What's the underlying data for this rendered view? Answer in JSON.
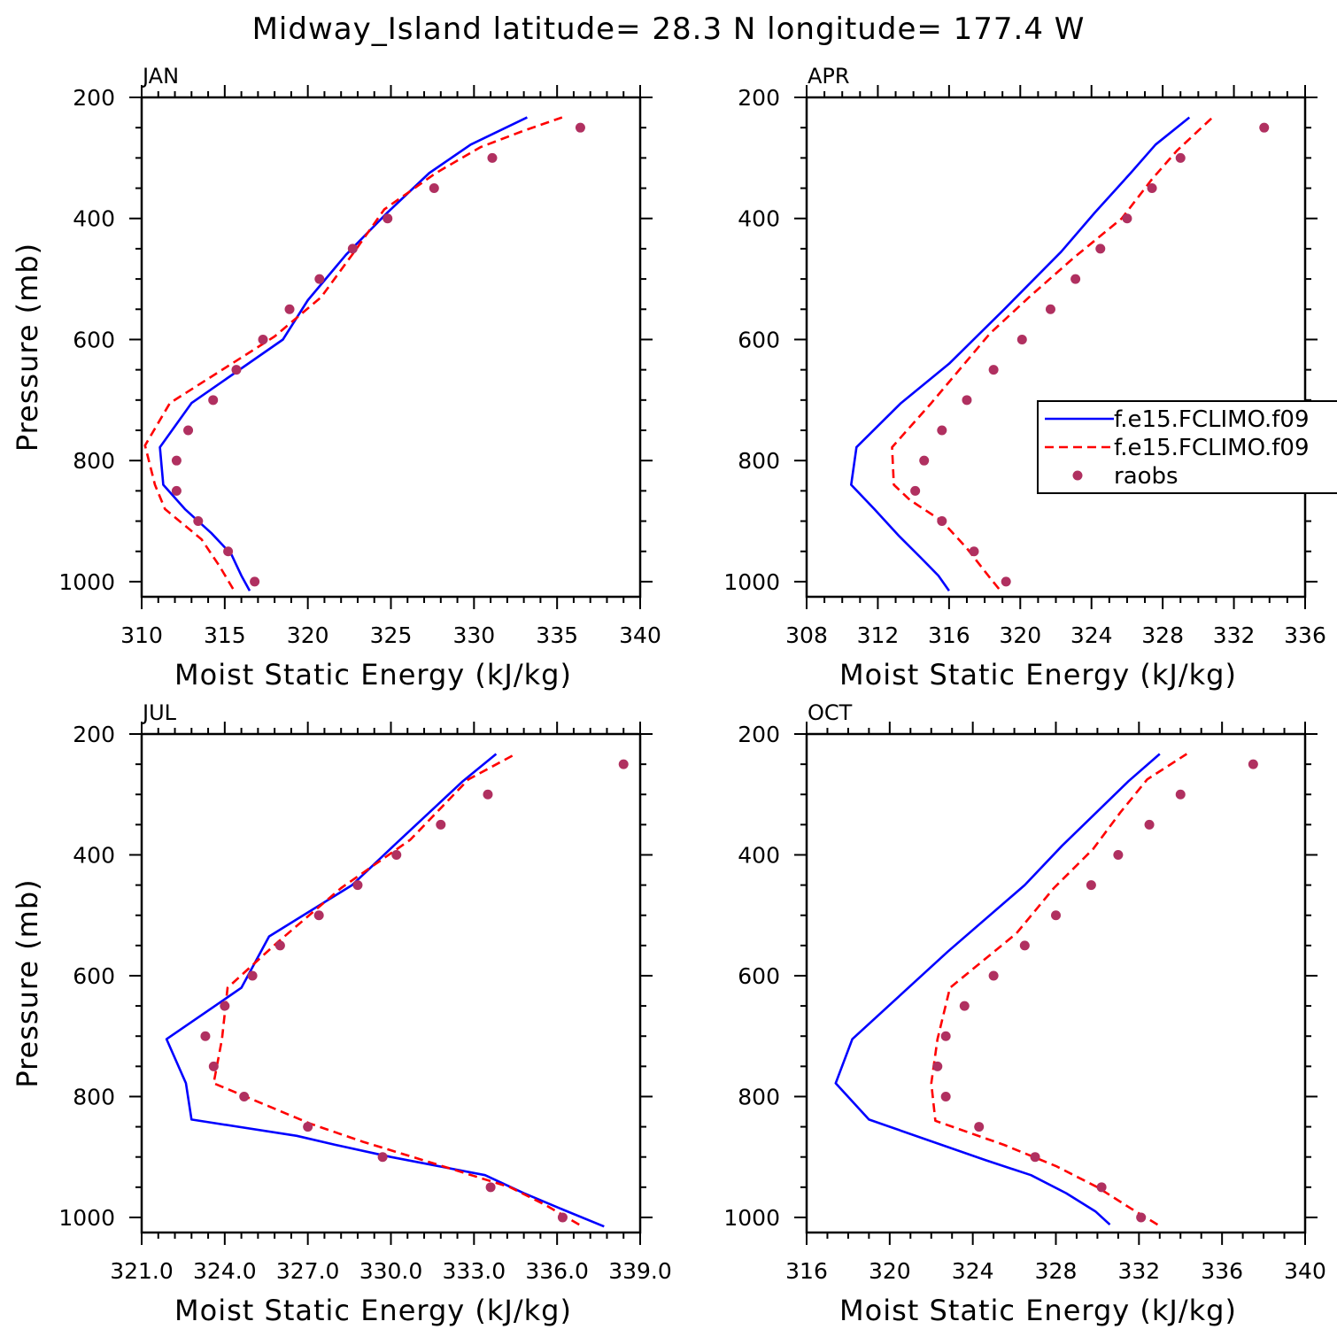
{
  "title": "Midway_Island  latitude= 28.3 N longitude= 177.4 W",
  "legend": {
    "entries": [
      {
        "label": "f.e15.FCLIMO.f09",
        "style": "solid",
        "color": "#0000ff"
      },
      {
        "label": "f.e15.FCLIMO.f09",
        "style": "dashed",
        "color": "#ff0000"
      },
      {
        "label": "raobs",
        "style": "dot",
        "color": "#b03060"
      }
    ]
  },
  "colors": {
    "model1": "#0000ff",
    "model2": "#ff0000",
    "raobs": "#b03060"
  },
  "chart_data": [
    {
      "type": "line",
      "panel": "JAN",
      "title": "JAN",
      "xlabel": "Moist Static Energy (kJ/kg)",
      "ylabel": "Pressure (mb)",
      "xlim": [
        310,
        340
      ],
      "ylim": [
        1025,
        200
      ],
      "xticks": [
        310,
        315,
        320,
        325,
        330,
        335,
        340
      ],
      "xtick_labels": [
        "310",
        "315",
        "320",
        "325",
        "330",
        "335",
        "340"
      ],
      "xminor": 1,
      "yticks": [
        200,
        400,
        600,
        800,
        1000
      ],
      "ytick_labels": [
        "200",
        "400",
        "600",
        "800",
        "1000"
      ],
      "series": [
        {
          "key": "model1",
          "x": [
            316.5,
            316.0,
            315.4,
            314.2,
            312.6,
            311.3,
            311.1,
            313.0,
            318.5,
            320.0,
            322.3,
            324.8,
            327.3,
            329.8,
            333.2
          ],
          "y": [
            1015,
            990,
            955,
            920,
            880,
            840,
            778,
            705,
            600,
            535,
            460,
            390,
            325,
            278,
            233
          ]
        },
        {
          "key": "model2",
          "x": [
            315.5,
            314.7,
            313.6,
            311.4,
            310.8,
            310.2,
            311.7,
            318.0,
            320.8,
            322.8,
            324.6,
            327.7,
            330.4,
            333.0,
            335.3
          ],
          "y": [
            1012,
            975,
            930,
            880,
            840,
            775,
            705,
            595,
            530,
            455,
            385,
            325,
            282,
            255,
            233
          ]
        },
        {
          "key": "raobs",
          "x": [
            316.8,
            315.2,
            313.4,
            312.1,
            312.1,
            312.8,
            314.3,
            315.7,
            317.3,
            318.9,
            320.7,
            322.7,
            324.8,
            327.6,
            331.1,
            336.4
          ],
          "y": [
            1000,
            950,
            900,
            850,
            800,
            750,
            700,
            650,
            600,
            550,
            500,
            450,
            400,
            350,
            300,
            250
          ]
        }
      ]
    },
    {
      "type": "line",
      "panel": "APR",
      "title": "APR",
      "xlabel": "Moist Static Energy (kJ/kg)",
      "ylabel": "",
      "xlim": [
        308,
        336
      ],
      "ylim": [
        1025,
        200
      ],
      "xticks": [
        308,
        312,
        316,
        320,
        324,
        328,
        332,
        336
      ],
      "xtick_labels": [
        "308",
        "312",
        "316",
        "320",
        "324",
        "328",
        "332",
        "336"
      ],
      "xminor": 1,
      "yticks": [
        200,
        400,
        600,
        800,
        1000
      ],
      "ytick_labels": [
        "200",
        "400",
        "600",
        "800",
        "1000"
      ],
      "series": [
        {
          "key": "model1",
          "x": [
            316.0,
            315.4,
            314.4,
            313.2,
            311.8,
            310.5,
            310.8,
            313.3,
            316.0,
            319.1,
            322.3,
            324.2,
            326.2,
            327.6,
            329.5
          ],
          "y": [
            1015,
            990,
            960,
            925,
            880,
            840,
            778,
            705,
            640,
            550,
            455,
            390,
            325,
            278,
            233
          ]
        },
        {
          "key": "model2",
          "x": [
            318.8,
            318.2,
            317.0,
            315.6,
            313.8,
            312.9,
            312.8,
            315.0,
            318.3,
            320.5,
            323.0,
            325.7,
            327.4,
            328.8,
            330.8
          ],
          "y": [
            1012,
            990,
            945,
            900,
            865,
            840,
            778,
            705,
            590,
            530,
            465,
            400,
            335,
            288,
            233
          ]
        },
        {
          "key": "raobs",
          "x": [
            319.2,
            317.4,
            315.6,
            314.1,
            314.6,
            315.6,
            317.0,
            318.5,
            320.1,
            321.7,
            323.1,
            324.5,
            326.0,
            327.4,
            329.0,
            333.7
          ],
          "y": [
            1000,
            950,
            900,
            850,
            800,
            750,
            700,
            650,
            600,
            550,
            500,
            450,
            400,
            350,
            300,
            250
          ]
        }
      ]
    },
    {
      "type": "line",
      "panel": "JUL",
      "title": "JUL",
      "xlabel": "Moist Static Energy (kJ/kg)",
      "ylabel": "Pressure (mb)",
      "xlim": [
        321,
        339
      ],
      "ylim": [
        1025,
        200
      ],
      "xticks": [
        321,
        324,
        327,
        330,
        333,
        336,
        339
      ],
      "xtick_labels": [
        "321.0",
        "324.0",
        "327.0",
        "330.0",
        "333.0",
        "336.0",
        "339.0"
      ],
      "xminor": 0.6,
      "yticks": [
        200,
        400,
        600,
        800,
        1000
      ],
      "ytick_labels": [
        "200",
        "400",
        "600",
        "800",
        "1000"
      ],
      "series": [
        {
          "key": "model1",
          "x": [
            337.7,
            336.1,
            334.8,
            333.4,
            330.0,
            328.0,
            326.6,
            322.8,
            322.6,
            321.9,
            324.6,
            325.6,
            328.6,
            330.1,
            331.5,
            332.6,
            333.8
          ],
          "y": [
            1015,
            985,
            960,
            930,
            900,
            880,
            865,
            838,
            778,
            705,
            620,
            535,
            450,
            385,
            325,
            278,
            233
          ]
        },
        {
          "key": "model2",
          "x": [
            336.8,
            335.6,
            334.3,
            331.5,
            329.0,
            327.1,
            323.6,
            323.9,
            324.1,
            325.9,
            328.2,
            330.7,
            332.8,
            334.5
          ],
          "y": [
            1012,
            980,
            950,
            910,
            875,
            845,
            778,
            705,
            620,
            545,
            455,
            375,
            275,
            233
          ]
        },
        {
          "key": "raobs",
          "x": [
            336.2,
            333.6,
            329.7,
            327.0,
            324.7,
            323.6,
            323.3,
            324.0,
            325.0,
            326.0,
            327.4,
            328.8,
            330.2,
            331.8,
            333.5,
            338.4
          ],
          "y": [
            1000,
            950,
            900,
            850,
            800,
            750,
            700,
            650,
            600,
            550,
            500,
            450,
            400,
            350,
            300,
            250
          ]
        }
      ]
    },
    {
      "type": "line",
      "panel": "OCT",
      "title": "OCT",
      "xlabel": "Moist Static Energy (kJ/kg)",
      "ylabel": "",
      "xlim": [
        316,
        340
      ],
      "ylim": [
        1025,
        200
      ],
      "xticks": [
        316,
        320,
        324,
        328,
        332,
        336,
        340
      ],
      "xtick_labels": [
        "316",
        "320",
        "324",
        "328",
        "332",
        "336",
        "340"
      ],
      "xminor": 1,
      "yticks": [
        200,
        400,
        600,
        800,
        1000
      ],
      "ytick_labels": [
        "200",
        "400",
        "600",
        "800",
        "1000"
      ],
      "series": [
        {
          "key": "model1",
          "x": [
            330.6,
            329.9,
            328.5,
            326.8,
            324.6,
            319.0,
            317.4,
            318.2,
            322.8,
            326.5,
            328.3,
            330.0,
            331.5,
            333.0
          ],
          "y": [
            1012,
            990,
            960,
            930,
            905,
            838,
            778,
            705,
            560,
            450,
            385,
            328,
            278,
            233
          ]
        },
        {
          "key": "model2",
          "x": [
            332.9,
            331.6,
            330.0,
            328.0,
            325.5,
            322.2,
            322.0,
            322.3,
            322.9,
            326.1,
            327.9,
            329.8,
            331.1,
            332.4,
            334.3
          ],
          "y": [
            1012,
            985,
            950,
            915,
            880,
            840,
            778,
            705,
            620,
            530,
            455,
            390,
            330,
            275,
            233
          ]
        },
        {
          "key": "raobs",
          "x": [
            332.1,
            330.2,
            327.0,
            324.3,
            322.7,
            322.3,
            322.7,
            323.6,
            325.0,
            326.5,
            328.0,
            329.7,
            331.0,
            332.5,
            334.0,
            337.5
          ],
          "y": [
            1000,
            950,
            900,
            850,
            800,
            750,
            700,
            650,
            600,
            550,
            500,
            450,
            400,
            350,
            300,
            250
          ]
        }
      ]
    }
  ]
}
